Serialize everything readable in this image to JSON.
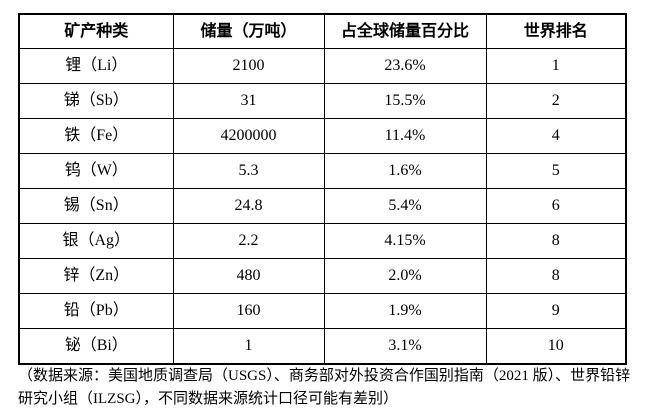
{
  "table": {
    "headers": [
      "矿产种类",
      "储量（万吨）",
      "占全球储量百分比",
      "世界排名"
    ],
    "column_keys": [
      "mineral-name-cell",
      "reserves-cell",
      "global-share-cell",
      "world-rank-cell"
    ],
    "rows": [
      [
        "锂（Li）",
        "2100",
        "23.6%",
        "1"
      ],
      [
        "锑（Sb）",
        "31",
        "15.5%",
        "2"
      ],
      [
        "铁（Fe）",
        "4200000",
        "11.4%",
        "4"
      ],
      [
        "钨（W）",
        "5.3",
        "1.6%",
        "5"
      ],
      [
        "锡（Sn）",
        "24.8",
        "5.4%",
        "6"
      ],
      [
        "银（Ag）",
        "2.2",
        "4.15%",
        "8"
      ],
      [
        "锌（Zn）",
        "480",
        "2.0%",
        "8"
      ],
      [
        "铅（Pb）",
        "160",
        "1.9%",
        "9"
      ],
      [
        "铋（Bi）",
        "1",
        "3.1%",
        "10"
      ]
    ]
  },
  "footnote": "（数据来源：美国地质调查局（USGS）、商务部对外投资合作国别指南（2021 版）、世界铅锌研究小组（ILZSG），不同数据来源统计口径可能有差别）",
  "colors": {
    "text": "#000000",
    "border": "#000000",
    "background": "#ffffff"
  }
}
